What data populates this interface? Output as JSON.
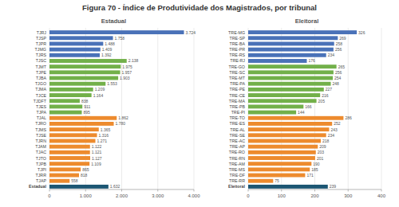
{
  "title": "Figura 70 - Índice de Produtividade dos Magistrados, por tribunal",
  "chart_data": [
    {
      "type": "bar",
      "title": "Estadual",
      "orientation": "horizontal",
      "grid": true,
      "data_labels": true,
      "categories": [
        "TJRJ",
        "TJSP",
        "TJPR",
        "TJMG",
        "TJRS",
        "TJSC",
        "TJMT",
        "TJPE",
        "TJBA",
        "TJGO",
        "TJMA",
        "TJCE",
        "TJDFT",
        "TJES",
        "TJPA",
        "TJAL",
        "TJRO",
        "TJMS",
        "TJSE",
        "TJRN",
        "TJAM",
        "TJAC",
        "TJTO",
        "TJPB",
        "TJPI",
        "TJRR",
        "TJAP",
        "Estadual"
      ],
      "values": [
        3724,
        1758,
        1488,
        1409,
        1392,
        2138,
        1975,
        1957,
        1903,
        1553,
        1209,
        1164,
        838,
        911,
        895,
        1862,
        1780,
        1365,
        1316,
        1271,
        1122,
        1121,
        1127,
        1109,
        865,
        818,
        558,
        1632
      ],
      "value_labels": [
        "3.724",
        "1.758",
        "1.488",
        "1.409",
        "1.392",
        "2.138",
        "1.975",
        "1.957",
        "1.903",
        "1.553",
        "1.209",
        "1.164",
        "838",
        "911",
        "895",
        "1.862",
        "1.780",
        "1.365",
        "1.316",
        "1.271",
        "1.122",
        "1.121",
        "1.127",
        "1.109",
        "865",
        "818",
        "558",
        "1.632"
      ],
      "colors": [
        "#4a72b8",
        "#4a72b8",
        "#4a72b8",
        "#4a72b8",
        "#4a72b8",
        "#72b04a",
        "#72b04a",
        "#72b04a",
        "#72b04a",
        "#72b04a",
        "#72b04a",
        "#72b04a",
        "#72b04a",
        "#72b04a",
        "#72b04a",
        "#ed8b2e",
        "#ed8b2e",
        "#ed8b2e",
        "#ed8b2e",
        "#ed8b2e",
        "#ed8b2e",
        "#ed8b2e",
        "#ed8b2e",
        "#ed8b2e",
        "#ed8b2e",
        "#ed8b2e",
        "#ed8b2e",
        "#1c5673"
      ],
      "xlim": [
        0,
        4000
      ],
      "xticks": [
        0,
        {
          "value": 1000,
          "label": "1.000"
        },
        {
          "value": 2000,
          "label": "2.000"
        },
        {
          "value": 3000,
          "label": "3.000"
        },
        {
          "value": 4000,
          "label": "4.000"
        }
      ]
    },
    {
      "type": "bar",
      "title": "Eleitoral",
      "orientation": "horizontal",
      "grid": true,
      "data_labels": true,
      "categories": [
        "TRE-MG",
        "TRE-SP",
        "TRE-BA",
        "TRE-PR",
        "TRE-RS",
        "TRE-RJ",
        "TRE-GO",
        "TRE-SC",
        "TRE-MT",
        "TRE-PA",
        "TRE-PE",
        "TRE-CE",
        "TRE-MA",
        "TRE-PB",
        "TRE-PI",
        "TRE-TO",
        "TRE-ES",
        "TRE-AL",
        "TRE-SE",
        "TRE-AC",
        "TRE-AP",
        "TRE-RO",
        "TRE-RN",
        "TRE-AM",
        "TRE-MS",
        "TRE-DF",
        "TRE-RR",
        "Eleitoral"
      ],
      "values": [
        326,
        269,
        258,
        256,
        234,
        176,
        265,
        256,
        254,
        248,
        227,
        216,
        205,
        166,
        144,
        286,
        252,
        243,
        234,
        218,
        209,
        203,
        201,
        190,
        185,
        171,
        75,
        239
      ],
      "colors": [
        "#4a72b8",
        "#4a72b8",
        "#4a72b8",
        "#4a72b8",
        "#4a72b8",
        "#4a72b8",
        "#72b04a",
        "#72b04a",
        "#72b04a",
        "#72b04a",
        "#72b04a",
        "#72b04a",
        "#72b04a",
        "#72b04a",
        "#72b04a",
        "#ed8b2e",
        "#ed8b2e",
        "#ed8b2e",
        "#ed8b2e",
        "#ed8b2e",
        "#ed8b2e",
        "#ed8b2e",
        "#ed8b2e",
        "#ed8b2e",
        "#ed8b2e",
        "#ed8b2e",
        "#ed8b2e",
        "#1c5673"
      ],
      "xlim": [
        0,
        400
      ],
      "xticks": [
        0,
        100,
        200,
        300,
        400
      ]
    }
  ]
}
